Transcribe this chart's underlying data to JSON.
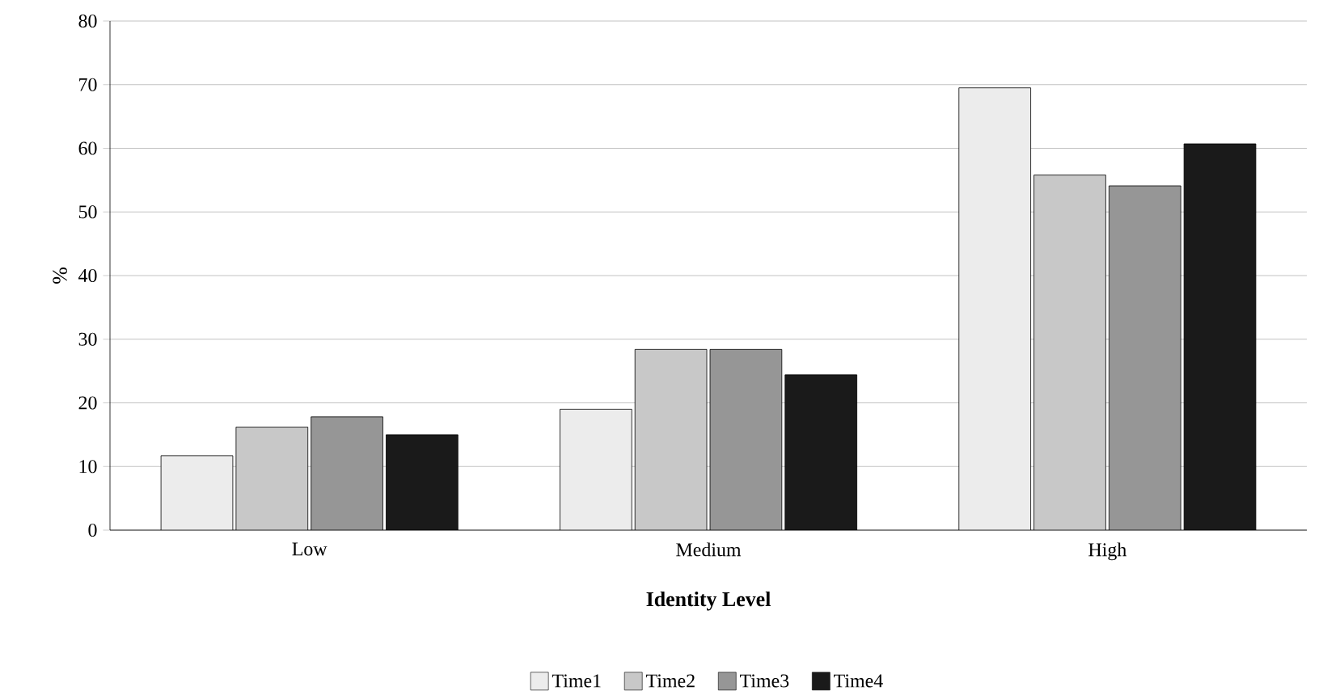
{
  "chart_data": {
    "type": "bar",
    "xlabel": "Identity Level",
    "ylabel": "%",
    "categories": [
      "Low",
      "Medium",
      "High"
    ],
    "series": [
      {
        "name": "Time1",
        "color": "#ececec",
        "values": [
          11.7,
          19.0,
          69.5
        ]
      },
      {
        "name": "Time2",
        "color": "#c8c8c8",
        "values": [
          16.2,
          28.4,
          55.8
        ]
      },
      {
        "name": "Time3",
        "color": "#969696",
        "values": [
          17.8,
          28.4,
          54.1
        ]
      },
      {
        "name": "Time4",
        "color": "#1a1a1a",
        "values": [
          15.0,
          24.4,
          60.7
        ]
      }
    ],
    "ylim": [
      0,
      80
    ],
    "yticks": [
      0,
      10,
      20,
      30,
      40,
      50,
      60,
      70,
      80
    ],
    "grid": "y",
    "legend": "bottom"
  }
}
